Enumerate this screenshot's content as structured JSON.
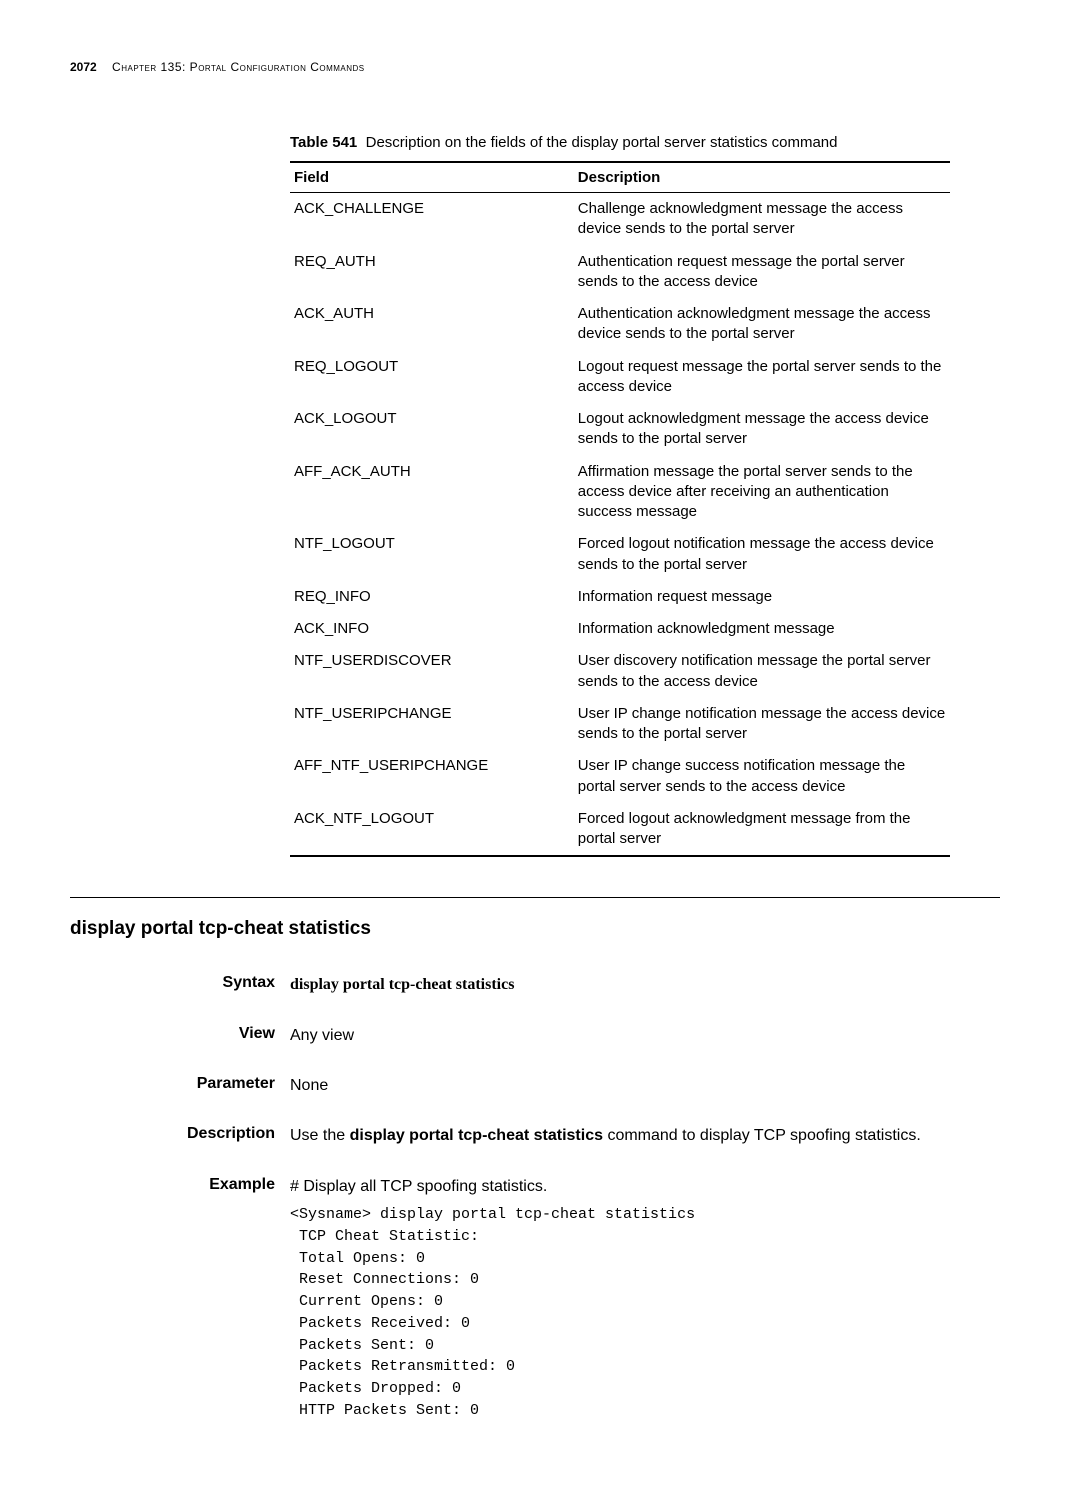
{
  "header": {
    "page_number": "2072",
    "chapter": "Chapter 135: Portal Configuration Commands"
  },
  "table": {
    "caption_label": "Table 541",
    "caption_text": "Description on the fields of the display portal server statistics command",
    "columns": [
      "Field",
      "Description"
    ],
    "column_widths": [
      "43%",
      "57%"
    ],
    "rows": [
      [
        "ACK_CHALLENGE",
        "Challenge acknowledgment message the access device sends to the portal server"
      ],
      [
        "REQ_AUTH",
        "Authentication request message the portal server sends to the access device"
      ],
      [
        "ACK_AUTH",
        "Authentication acknowledgment message the access device sends to the portal server"
      ],
      [
        "REQ_LOGOUT",
        "Logout request message the portal server sends to the access device"
      ],
      [
        "ACK_LOGOUT",
        "Logout acknowledgment message the access device sends to the portal server"
      ],
      [
        "AFF_ACK_AUTH",
        "Affirmation message the portal server sends to the access device after receiving an authentication success message"
      ],
      [
        "NTF_LOGOUT",
        "Forced logout notification message the access device sends to the portal server"
      ],
      [
        "REQ_INFO",
        "Information request message"
      ],
      [
        "ACK_INFO",
        "Information acknowledgment message"
      ],
      [
        "NTF_USERDISCOVER",
        "User discovery notification message the portal server sends to the access device"
      ],
      [
        "NTF_USERIPCHANGE",
        "User IP change notification message the access device sends to the portal server"
      ],
      [
        "AFF_NTF_USERIPCHANGE",
        "User IP change success notification message the portal server sends to the access device"
      ],
      [
        "ACK_NTF_LOGOUT",
        "Forced logout acknowledgment message from the portal server"
      ]
    ]
  },
  "section": {
    "title": "display portal tcp-cheat statistics",
    "syntax_label": "Syntax",
    "syntax_value": "display portal tcp-cheat statistics",
    "view_label": "View",
    "view_value": "Any view",
    "parameter_label": "Parameter",
    "parameter_value": "None",
    "description_label": "Description",
    "description_pre": "Use the ",
    "description_bold": "display portal tcp-cheat statistics",
    "description_post": " command to display TCP spoofing statistics.",
    "example_label": "Example",
    "example_intro": "# Display all TCP spoofing statistics.",
    "example_code": "<Sysname> display portal tcp-cheat statistics\n TCP Cheat Statistic:\n Total Opens: 0\n Reset Connections: 0\n Current Opens: 0\n Packets Received: 0\n Packets Sent: 0\n Packets Retransmitted: 0\n Packets Dropped: 0\n HTTP Packets Sent: 0"
  }
}
